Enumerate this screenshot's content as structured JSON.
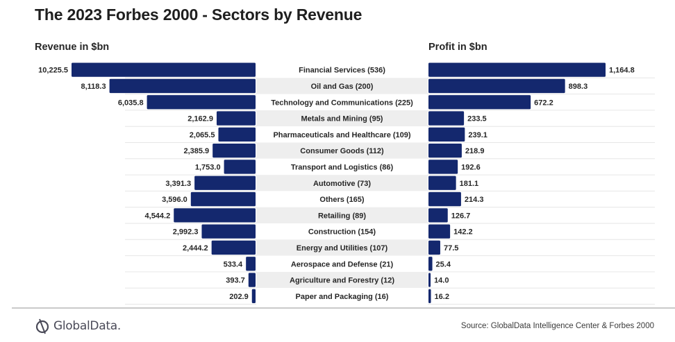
{
  "chart_data": {
    "type": "bar",
    "subtype": "butterfly-horizontal-bar",
    "title": "The 2023 Forbes 2000 - Sectors by Revenue",
    "bar_color": "#14286e",
    "categories": [
      "Financial Services (536)",
      "Oil and Gas (200)",
      "Technology and Communications (225)",
      "Metals and Mining (95)",
      "Pharmaceuticals and Healthcare (109)",
      "Consumer Goods (112)",
      "Transport and Logistics (86)",
      "Automotive (73)",
      "Others (165)",
      "Retailing (89)",
      "Construction (154)",
      "Energy and Utilities (107)",
      "Aerospace and Defense (21)",
      "Agriculture and Forestry (12)",
      "Paper and Packaging (16)"
    ],
    "series": [
      {
        "name": "Revenue in $bn",
        "direction": "left",
        "values": [
          10225.5,
          8118.3,
          6035.8,
          2162.9,
          2065.5,
          2385.9,
          1753.0,
          3391.3,
          3596.0,
          4544.2,
          2992.3,
          2444.2,
          533.4,
          393.7,
          202.9
        ],
        "labels": [
          "10,225.5",
          "8,118.3",
          "6,035.8",
          "2,162.9",
          "2,065.5",
          "2,385.9",
          "1,753.0",
          "3,391.3",
          "3,596.0",
          "4,544.2",
          "2,992.3",
          "2,444.2",
          "533.4",
          "393.7",
          "202.9"
        ]
      },
      {
        "name": "Profit in $bn",
        "direction": "right",
        "values": [
          1164.8,
          898.3,
          672.2,
          233.5,
          239.1,
          218.9,
          192.6,
          181.1,
          214.3,
          126.7,
          142.2,
          77.5,
          25.4,
          14.0,
          16.2
        ],
        "labels": [
          "1,164.8",
          "898.3",
          "672.2",
          "233.5",
          "239.1",
          "218.9",
          "192.6",
          "181.1",
          "214.3",
          "126.7",
          "142.2",
          "77.5",
          "25.4",
          "14.0",
          "16.2"
        ]
      }
    ],
    "xlabel": "",
    "ylabel": "",
    "grid": true,
    "legend": "none"
  },
  "headers": {
    "title": "The 2023 Forbes 2000 - Sectors by Revenue",
    "revenue": "Revenue in $bn",
    "profit": "Profit in $bn"
  },
  "footer": {
    "logo_text": "GlobalData.",
    "source": "Source: GlobalData Intelligence Center & Forbes 2000"
  }
}
